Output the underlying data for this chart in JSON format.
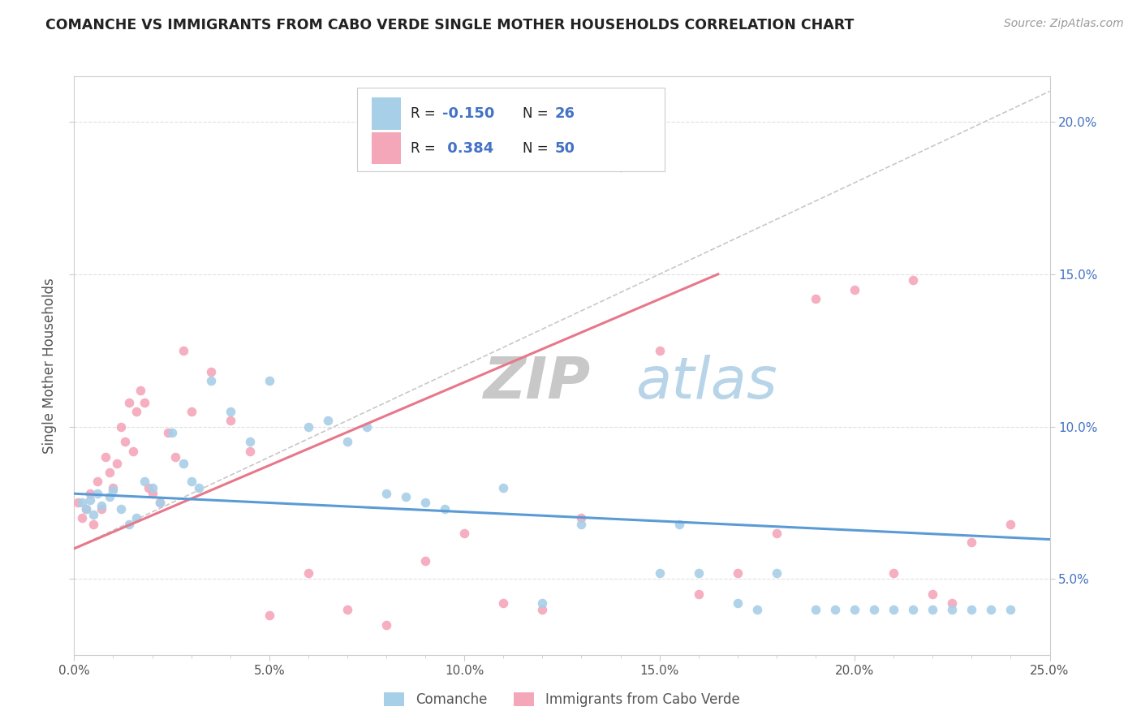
{
  "title": "COMANCHE VS IMMIGRANTS FROM CABO VERDE SINGLE MOTHER HOUSEHOLDS CORRELATION CHART",
  "source": "Source: ZipAtlas.com",
  "ylabel": "Single Mother Households",
  "xmin": 0.0,
  "xmax": 0.25,
  "ymin": 0.025,
  "ymax": 0.215,
  "color_blue": "#a8cfe8",
  "color_pink": "#f4a7b9",
  "color_blue_line": "#5b9bd5",
  "color_pink_line": "#e8778a",
  "color_gray_line": "#c8c8c8",
  "watermark_zip": "ZIP",
  "watermark_atlas": "atlas",
  "series1_label": "Comanche",
  "series2_label": "Immigrants from Cabo Verde",
  "blue_scatter_x": [
    0.002,
    0.003,
    0.004,
    0.005,
    0.006,
    0.007,
    0.009,
    0.01,
    0.012,
    0.014,
    0.016,
    0.018,
    0.02,
    0.022,
    0.025,
    0.028,
    0.03,
    0.032,
    0.035,
    0.04,
    0.045,
    0.05,
    0.06,
    0.065,
    0.07,
    0.075,
    0.08,
    0.085,
    0.09,
    0.095,
    0.11,
    0.12,
    0.13,
    0.15,
    0.155,
    0.16,
    0.17,
    0.175,
    0.18,
    0.19,
    0.195,
    0.2,
    0.205,
    0.21,
    0.215,
    0.22,
    0.225,
    0.23,
    0.235,
    0.24
  ],
  "blue_scatter_y": [
    0.075,
    0.073,
    0.076,
    0.071,
    0.078,
    0.074,
    0.077,
    0.079,
    0.073,
    0.068,
    0.07,
    0.082,
    0.08,
    0.075,
    0.098,
    0.088,
    0.082,
    0.08,
    0.115,
    0.105,
    0.095,
    0.115,
    0.1,
    0.102,
    0.095,
    0.1,
    0.078,
    0.077,
    0.075,
    0.073,
    0.08,
    0.042,
    0.068,
    0.052,
    0.068,
    0.052,
    0.042,
    0.04,
    0.052,
    0.04,
    0.04,
    0.04,
    0.04,
    0.04,
    0.04,
    0.04,
    0.04,
    0.04,
    0.04,
    0.04
  ],
  "pink_scatter_x": [
    0.001,
    0.002,
    0.003,
    0.004,
    0.005,
    0.006,
    0.007,
    0.008,
    0.009,
    0.01,
    0.011,
    0.012,
    0.013,
    0.014,
    0.015,
    0.016,
    0.017,
    0.018,
    0.019,
    0.02,
    0.022,
    0.024,
    0.026,
    0.028,
    0.03,
    0.035,
    0.04,
    0.045,
    0.05,
    0.06,
    0.07,
    0.08,
    0.09,
    0.1,
    0.11,
    0.12,
    0.13,
    0.14,
    0.15,
    0.16,
    0.17,
    0.18,
    0.19,
    0.2,
    0.21,
    0.215,
    0.22,
    0.225,
    0.23,
    0.24
  ],
  "pink_scatter_y": [
    0.075,
    0.07,
    0.073,
    0.078,
    0.068,
    0.082,
    0.073,
    0.09,
    0.085,
    0.08,
    0.088,
    0.1,
    0.095,
    0.108,
    0.092,
    0.105,
    0.112,
    0.108,
    0.08,
    0.078,
    0.075,
    0.098,
    0.09,
    0.125,
    0.105,
    0.118,
    0.102,
    0.092,
    0.038,
    0.052,
    0.04,
    0.035,
    0.056,
    0.065,
    0.042,
    0.04,
    0.07,
    0.185,
    0.125,
    0.045,
    0.052,
    0.065,
    0.142,
    0.145,
    0.052,
    0.148,
    0.045,
    0.042,
    0.062,
    0.068
  ],
  "blue_line_x": [
    0.0,
    0.25
  ],
  "blue_line_y": [
    0.078,
    0.063
  ],
  "pink_line_x": [
    0.0,
    0.165
  ],
  "pink_line_y": [
    0.06,
    0.15
  ],
  "gray_line_x": [
    0.0,
    0.25
  ],
  "gray_line_y": [
    0.06,
    0.21
  ]
}
